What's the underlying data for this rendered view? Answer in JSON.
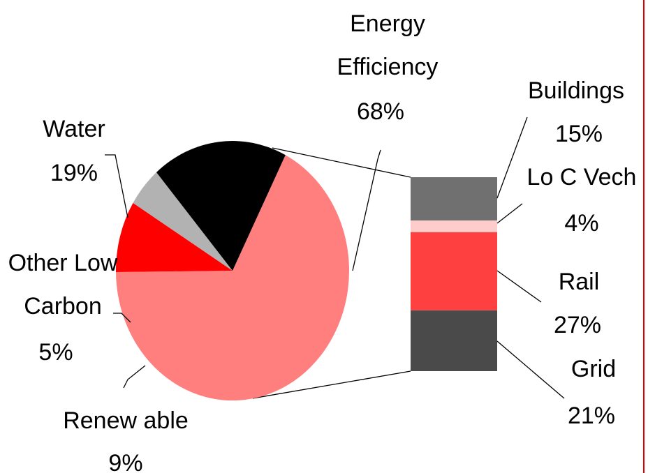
{
  "chart_data": [
    {
      "type": "pie",
      "title": "",
      "slices": [
        {
          "name": "Energy Efficiency",
          "name_lines": [
            "Energy",
            "Efficiency"
          ],
          "value": 68,
          "pct_label": "68%",
          "color": "#ff7f7f"
        },
        {
          "name": "Renewable",
          "name_lines": [
            "Renew able"
          ],
          "value": 9,
          "pct_label": "9%",
          "color": "#ff0000"
        },
        {
          "name": "Other Low Carbon",
          "name_lines": [
            "Other Low",
            "Carbon"
          ],
          "value": 5,
          "pct_label": "5%",
          "color": "#b2b2b2"
        },
        {
          "name": "Water",
          "name_lines": [
            "Water"
          ],
          "value": 19,
          "pct_label": "19%",
          "color": "#000000"
        }
      ]
    },
    {
      "type": "bar",
      "stacked": true,
      "title": "",
      "breakdown_of": "Energy Efficiency",
      "segments": [
        {
          "name": "Buildings",
          "name_lines": [
            "Buildings"
          ],
          "value": 15,
          "pct_label": "15%",
          "color": "#707070"
        },
        {
          "name": "Lo C Vech",
          "name_lines": [
            "Lo C Vech"
          ],
          "value": 4,
          "pct_label": "4%",
          "color": "#ffcccc"
        },
        {
          "name": "Rail",
          "name_lines": [
            "Rail"
          ],
          "value": 27,
          "pct_label": "27%",
          "color": "#ff4040"
        },
        {
          "name": "Grid",
          "name_lines": [
            "Grid"
          ],
          "value": 21,
          "pct_label": "21%",
          "color": "#4a4a4a"
        }
      ]
    }
  ],
  "colors": {
    "frame_line": "#e00000",
    "leader": "#000000"
  }
}
